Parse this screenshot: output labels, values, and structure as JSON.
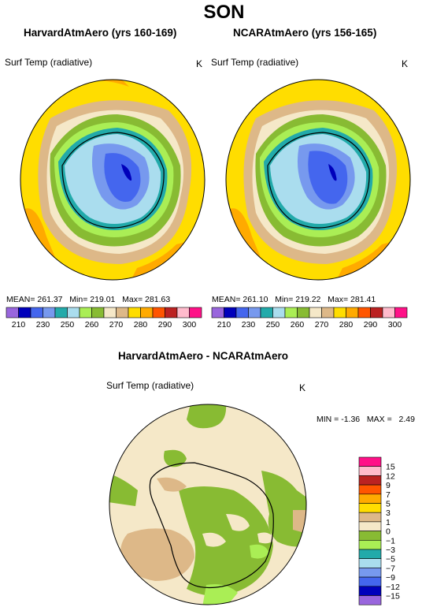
{
  "page": {
    "title": "SON",
    "left_panel": {
      "title": "HarvardAtmAero (yrs 160-169)",
      "variable": "Surf Temp (radiative)",
      "units": "K",
      "mean_label": "MEAN=",
      "mean": "261.37",
      "min_label": "Min=",
      "min": "219.01",
      "max_label": "Max=",
      "max": "281.63"
    },
    "right_panel": {
      "title": "NCARAtmAero (yrs 156-165)",
      "variable": "Surf Temp (radiative)",
      "units": "K",
      "mean_label": "MEAN=",
      "mean": "261.10",
      "min_label": "Min=",
      "min": "219.22",
      "max_label": "Max=",
      "max": "281.41"
    },
    "diff_panel": {
      "title": "HarvardAtmAero - NCARAtmAero",
      "variable": "Surf Temp (radiative)",
      "units": "K",
      "min_label": "MIN =",
      "min": "-1.36",
      "max_label": "MAX =",
      "max": "2.49"
    }
  },
  "colorbar_abs": {
    "colors": [
      "#9966dd",
      "#0000bb",
      "#4466ee",
      "#7799ee",
      "#22aaaa",
      "#aaddee",
      "#aaee55",
      "#88bb33",
      "#f5e8c8",
      "#ddb888",
      "#ffdd00",
      "#ffaa00",
      "#ff5500",
      "#bb2222",
      "#ffbbcc",
      "#ff1188"
    ],
    "labels": [
      "210",
      "230",
      "250",
      "260",
      "270",
      "280",
      "290",
      "300"
    ],
    "label_positions_in_level_units": [
      1,
      2,
      3,
      4,
      5,
      6,
      7,
      8,
      9,
      10,
      11,
      12,
      13,
      14
    ]
  },
  "colorbar_diff": {
    "colors_top_to_bottom": [
      "#ff1188",
      "#ffbbcc",
      "#bb2222",
      "#ff5500",
      "#ffaa00",
      "#ffdd00",
      "#ddb888",
      "#f5e8c8",
      "#88bb33",
      "#aaee55",
      "#22aaaa",
      "#aaddee",
      "#7799ee",
      "#4466ee",
      "#0000bb",
      "#9966dd"
    ],
    "labels_top_to_bottom": [
      "15",
      "12",
      "9",
      "7",
      "5",
      "3",
      "1",
      "0",
      "−1",
      "−3",
      "−5",
      "−7",
      "−9",
      "−12",
      "−15"
    ]
  }
}
